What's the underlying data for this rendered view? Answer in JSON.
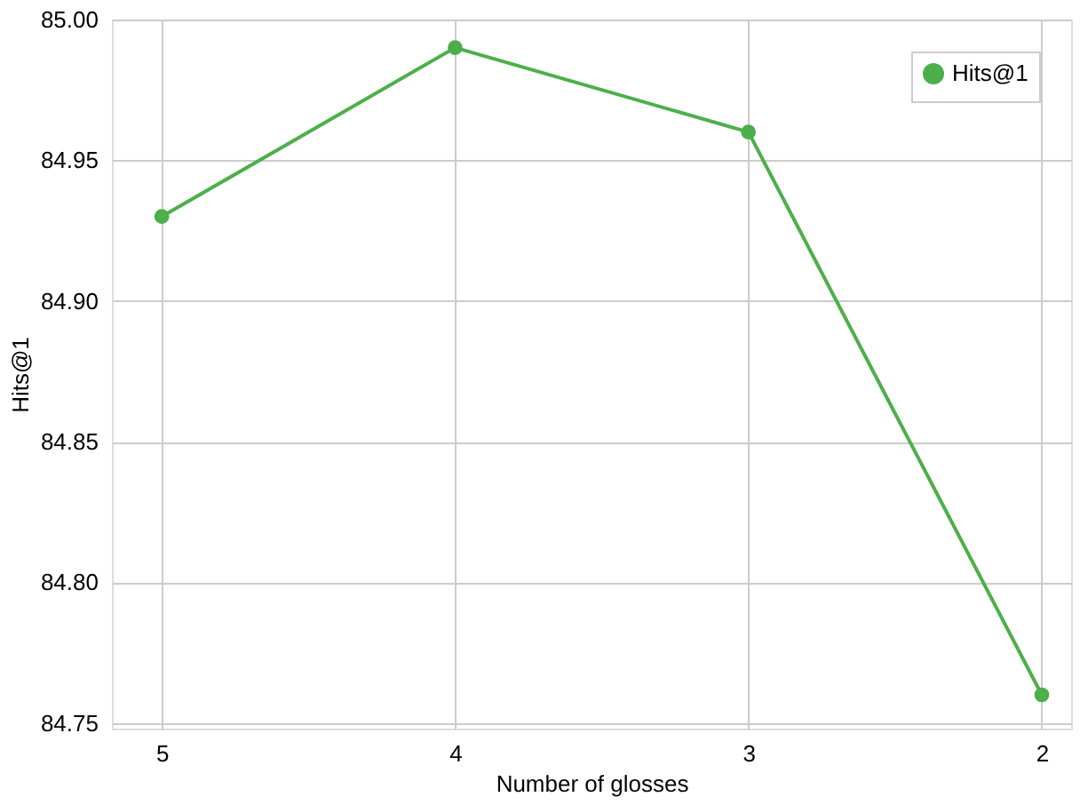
{
  "chart_data": {
    "type": "line",
    "xlabel": "Number of glosses",
    "ylabel": "Hits@1",
    "x": [
      5,
      4,
      3,
      2
    ],
    "series": [
      {
        "name": "Hits@1",
        "color": "#4daf4a",
        "values": [
          84.93,
          84.99,
          84.96,
          84.76
        ]
      }
    ],
    "xlim": [
      5.17,
      1.9
    ],
    "xticks": [
      5,
      4,
      3,
      2
    ],
    "ylim": [
      84.748,
      85.0
    ],
    "yticks": [
      84.75,
      {
        "value": 84.8,
        "label": "84.80"
      },
      84.85,
      {
        "value": 84.9,
        "label": "84.90"
      },
      84.95,
      {
        "value": 85.0,
        "label": "85.00"
      }
    ],
    "grid": true,
    "legend": "top right",
    "marker": "circle",
    "line_style": "solid"
  }
}
